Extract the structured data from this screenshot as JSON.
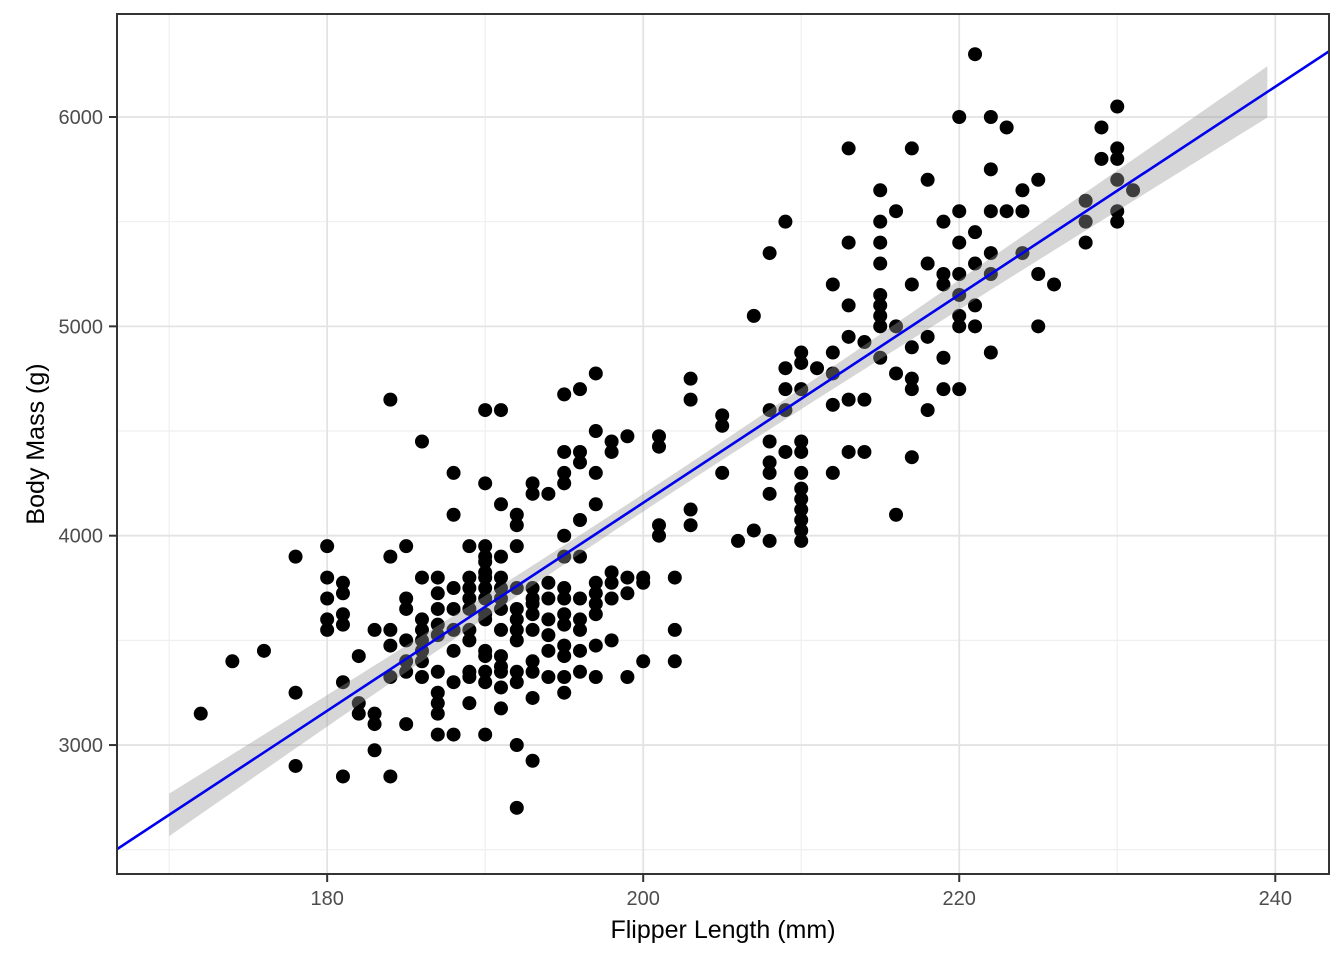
{
  "figure": {
    "background": "#FFFFFF",
    "title": ""
  },
  "style": {
    "panel_background": "#FFFFFF",
    "panel_border": "#343434",
    "grid_major": "#E3E3E3",
    "grid_minor": "#EFEFEF",
    "tick_mark_color": "#333333",
    "tick_label_color": "#4D4D4D",
    "axis_title_color": "#000000",
    "point_color": "#000000",
    "regression_line_color": "#0000EE",
    "confidence_band_color": "rgba(153,153,153,0.40)"
  },
  "chart_data": {
    "type": "scatter",
    "title": "",
    "xlabel": "Flipper Length (mm)",
    "ylabel": "Body Mass (g)",
    "xlim": [
      166.7,
      243.4
    ],
    "ylim": [
      2384,
      6492
    ],
    "x_ticks": [
      180,
      200,
      220,
      240
    ],
    "x_minor_ticks": [
      170,
      190,
      210,
      230
    ],
    "y_ticks": [
      3000,
      4000,
      5000,
      6000
    ],
    "y_minor_ticks": [
      2500,
      3500,
      4500,
      5500
    ],
    "grid": true,
    "legend": false,
    "regression": {
      "type": "linear",
      "slope": 49.69,
      "intercept": -5780.8,
      "x_domain": [
        166.7,
        243.4
      ]
    },
    "confidence_band": {
      "x_domain": [
        170,
        239.9
      ],
      "halfwidth_formula": "g = scale*sqrt(base + (x-mean_x)^2/sxx)",
      "scale": 775,
      "base": 0.002924,
      "mean_x": 200.9,
      "sxx": 67415
    },
    "points": [
      [
        213,
        5850
      ],
      [
        217,
        5850
      ],
      [
        215,
        5650
      ],
      [
        216,
        5550
      ],
      [
        215,
        5500
      ],
      [
        213,
        5400
      ],
      [
        215,
        5400
      ],
      [
        215,
        5300
      ],
      [
        209,
        5500
      ],
      [
        208,
        5350
      ],
      [
        207,
        5050
      ],
      [
        212,
        5200
      ],
      [
        213,
        5100
      ],
      [
        217,
        5200
      ],
      [
        215,
        5150
      ],
      [
        215,
        5100
      ],
      [
        215,
        5050
      ],
      [
        215,
        5000
      ],
      [
        221,
        6300
      ],
      [
        220,
        6000
      ],
      [
        222,
        6000
      ],
      [
        223,
        5950
      ],
      [
        230,
        6050
      ],
      [
        229,
        5950
      ],
      [
        230,
        5850
      ],
      [
        229,
        5800
      ],
      [
        230,
        5800
      ],
      [
        218,
        5700
      ],
      [
        222,
        5750
      ],
      [
        230,
        5700
      ],
      [
        231,
        5650
      ],
      [
        225,
        5700
      ],
      [
        224,
        5650
      ],
      [
        220,
        5550
      ],
      [
        222,
        5550
      ],
      [
        223,
        5550
      ],
      [
        224,
        5550
      ],
      [
        219,
        5500
      ],
      [
        228,
        5600
      ],
      [
        228,
        5500
      ],
      [
        230,
        5550
      ],
      [
        230,
        5500
      ],
      [
        221,
        5450
      ],
      [
        220,
        5400
      ],
      [
        222,
        5350
      ],
      [
        221,
        5300
      ],
      [
        228,
        5400
      ],
      [
        218,
        5300
      ],
      [
        220,
        5250
      ],
      [
        219,
        5250
      ],
      [
        219,
        5200
      ],
      [
        220,
        5150
      ],
      [
        221,
        5100
      ],
      [
        222,
        5250
      ],
      [
        225,
        5250
      ],
      [
        226,
        5200
      ],
      [
        224,
        5350
      ],
      [
        220,
        5050
      ],
      [
        220,
        5000
      ],
      [
        221,
        5000
      ],
      [
        218,
        4950
      ],
      [
        225,
        5000
      ],
      [
        217,
        4900
      ],
      [
        219,
        4850
      ],
      [
        222,
        4875
      ],
      [
        219,
        4700
      ],
      [
        220,
        4700
      ],
      [
        218,
        4600
      ],
      [
        217,
        4375
      ],
      [
        216,
        5000
      ],
      [
        213,
        4950
      ],
      [
        214,
        4925
      ],
      [
        215,
        4850
      ],
      [
        212,
        4875
      ],
      [
        210,
        4875
      ],
      [
        210,
        4825
      ],
      [
        211,
        4800
      ],
      [
        209,
        4800
      ],
      [
        209,
        4700
      ],
      [
        210,
        4700
      ],
      [
        208,
        4600
      ],
      [
        209,
        4600
      ],
      [
        212,
        4775
      ],
      [
        212,
        4625
      ],
      [
        203,
        4750
      ],
      [
        203,
        4650
      ],
      [
        205,
        4575
      ],
      [
        205,
        4525
      ],
      [
        201,
        4475
      ],
      [
        201,
        4425
      ],
      [
        208,
        4450
      ],
      [
        209,
        4400
      ],
      [
        210,
        4450
      ],
      [
        210,
        4400
      ],
      [
        208,
        4350
      ],
      [
        208,
        4300
      ],
      [
        205,
        4300
      ],
      [
        210,
        4300
      ],
      [
        213,
        4400
      ],
      [
        214,
        4400
      ],
      [
        212,
        4300
      ],
      [
        217,
        4750
      ],
      [
        217,
        4700
      ],
      [
        216,
        4775
      ],
      [
        208,
        4200
      ],
      [
        210,
        4225
      ],
      [
        210,
        4175
      ],
      [
        210,
        4125
      ],
      [
        210,
        4075
      ],
      [
        203,
        4125
      ],
      [
        203,
        4050
      ],
      [
        201,
        4050
      ],
      [
        201,
        4000
      ],
      [
        213,
        4650
      ],
      [
        214,
        4650
      ],
      [
        207,
        4025
      ],
      [
        208,
        3975
      ],
      [
        210,
        4025
      ],
      [
        210,
        3975
      ],
      [
        206,
        3975
      ],
      [
        216,
        4100
      ],
      [
        184,
        4650
      ],
      [
        180,
        3950
      ],
      [
        178,
        3900
      ],
      [
        184,
        3900
      ],
      [
        185,
        3950
      ],
      [
        180,
        3800
      ],
      [
        181,
        3775
      ],
      [
        197,
        4775
      ],
      [
        196,
        4700
      ],
      [
        195,
        4675
      ],
      [
        190,
        4600
      ],
      [
        191,
        4600
      ],
      [
        186,
        4450
      ],
      [
        197,
        4500
      ],
      [
        199,
        4475
      ],
      [
        198,
        4450
      ],
      [
        198,
        4400
      ],
      [
        195,
        4400
      ],
      [
        196,
        4400
      ],
      [
        196,
        4350
      ],
      [
        195,
        4300
      ],
      [
        195,
        4250
      ],
      [
        197,
        4300
      ],
      [
        188,
        4300
      ],
      [
        190,
        4250
      ],
      [
        193,
        4250
      ],
      [
        193,
        4200
      ],
      [
        194,
        4200
      ],
      [
        191,
        4150
      ],
      [
        192,
        4100
      ],
      [
        192,
        4050
      ],
      [
        195,
        4000
      ],
      [
        188,
        4100
      ],
      [
        196,
        4075
      ],
      [
        197,
        4150
      ],
      [
        189,
        3950
      ],
      [
        190,
        3950
      ],
      [
        190,
        3900
      ],
      [
        191,
        3900
      ],
      [
        192,
        3950
      ],
      [
        186,
        3800
      ],
      [
        187,
        3800
      ],
      [
        189,
        3800
      ],
      [
        190,
        3800
      ],
      [
        191,
        3800
      ],
      [
        198,
        3825
      ],
      [
        198,
        3775
      ],
      [
        199,
        3800
      ],
      [
        195,
        3900
      ],
      [
        196,
        3900
      ],
      [
        200,
        3800
      ],
      [
        180,
        3700
      ],
      [
        181,
        3725
      ],
      [
        181,
        3625
      ],
      [
        181,
        3575
      ],
      [
        180,
        3600
      ],
      [
        180,
        3550
      ],
      [
        183,
        3550
      ],
      [
        184,
        3550
      ],
      [
        184,
        3475
      ],
      [
        176,
        3450
      ],
      [
        174,
        3400
      ],
      [
        182,
        3425
      ],
      [
        172,
        3150
      ],
      [
        178,
        3250
      ],
      [
        181,
        3300
      ],
      [
        182,
        3200
      ],
      [
        182,
        3150
      ],
      [
        183,
        3150
      ],
      [
        183,
        3100
      ],
      [
        185,
        3100
      ],
      [
        183,
        2975
      ],
      [
        178,
        2900
      ],
      [
        181,
        2850
      ],
      [
        184,
        2850
      ],
      [
        192,
        2700
      ],
      [
        194,
        3775
      ],
      [
        197,
        3775
      ],
      [
        197,
        3725
      ],
      [
        187,
        3725
      ],
      [
        187,
        3650
      ],
      [
        193,
        3675
      ],
      [
        193,
        3625
      ],
      [
        197,
        3675
      ],
      [
        197,
        3625
      ],
      [
        195,
        3625
      ],
      [
        195,
        3575
      ],
      [
        196,
        3700
      ],
      [
        198,
        3700
      ],
      [
        199,
        3725
      ],
      [
        185,
        3700
      ],
      [
        185,
        3650
      ],
      [
        187,
        3575
      ],
      [
        186,
        3550
      ],
      [
        187,
        3525
      ],
      [
        186,
        3500
      ],
      [
        187,
        3350
      ],
      [
        187,
        3250
      ],
      [
        187,
        3200
      ],
      [
        187,
        3150
      ],
      [
        188,
        3300
      ],
      [
        188,
        3050
      ],
      [
        187,
        3050
      ],
      [
        189,
        3350
      ],
      [
        189,
        3325
      ],
      [
        189,
        3200
      ],
      [
        190,
        3750
      ],
      [
        190,
        3600
      ],
      [
        190,
        3450
      ],
      [
        190,
        3425
      ],
      [
        190,
        3350
      ],
      [
        190,
        3300
      ],
      [
        190,
        3050
      ],
      [
        191,
        3425
      ],
      [
        191,
        3375
      ],
      [
        191,
        3275
      ],
      [
        191,
        3175
      ],
      [
        192,
        3500
      ],
      [
        192,
        3000
      ],
      [
        193,
        2925
      ],
      [
        193,
        3225
      ],
      [
        194,
        3525
      ],
      [
        194,
        3450
      ],
      [
        195,
        3475
      ],
      [
        195,
        3425
      ],
      [
        195,
        3325
      ],
      [
        195,
        3250
      ],
      [
        196,
        3350
      ],
      [
        197,
        3475
      ],
      [
        198,
        3500
      ],
      [
        197,
        3325
      ],
      [
        199,
        3325
      ],
      [
        200,
        3400
      ],
      [
        189,
        3650
      ],
      [
        190,
        3625
      ],
      [
        191,
        3700
      ],
      [
        192,
        3550
      ],
      [
        202,
        3800
      ],
      [
        202,
        3550
      ],
      [
        202,
        3400
      ],
      [
        185,
        3350
      ],
      [
        186,
        3325
      ],
      [
        186,
        3400
      ],
      [
        185,
        3400
      ],
      [
        184,
        3325
      ],
      [
        188,
        3450
      ],
      [
        189,
        3500
      ],
      [
        189,
        3550
      ],
      [
        190,
        3700
      ],
      [
        191,
        3750
      ],
      [
        190,
        3875
      ],
      [
        190,
        3825
      ],
      [
        191,
        3650
      ],
      [
        192,
        3600
      ],
      [
        192,
        3650
      ],
      [
        193,
        3400
      ],
      [
        193,
        3350
      ],
      [
        191,
        3550
      ],
      [
        188,
        3550
      ],
      [
        188,
        3650
      ],
      [
        189,
        3700
      ],
      [
        186,
        3600
      ],
      [
        185,
        3500
      ],
      [
        186,
        3450
      ],
      [
        194,
        3600
      ],
      [
        194,
        3700
      ],
      [
        195,
        3700
      ],
      [
        195,
        3750
      ],
      [
        196,
        3550
      ],
      [
        196,
        3600
      ],
      [
        193,
        3550
      ],
      [
        193,
        3700
      ],
      [
        193,
        3750
      ],
      [
        192,
        3750
      ],
      [
        188,
        3750
      ],
      [
        189,
        3750
      ],
      [
        192,
        3350
      ],
      [
        192,
        3300
      ],
      [
        194,
        3325
      ],
      [
        196,
        3450
      ],
      [
        200,
        3775
      ],
      [
        191,
        3350
      ]
    ]
  }
}
